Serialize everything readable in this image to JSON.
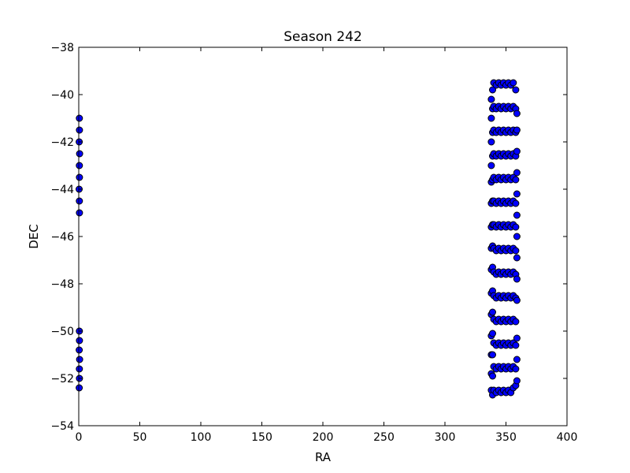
{
  "chart_data": {
    "type": "scatter",
    "title": "Season 242",
    "xlabel": "RA",
    "ylabel": "DEC",
    "xlim": [
      0,
      400
    ],
    "ylim": [
      -54,
      -38
    ],
    "x_ticks": [
      0,
      50,
      100,
      150,
      200,
      250,
      300,
      350,
      400
    ],
    "y_ticks": [
      -54,
      -52,
      -50,
      -48,
      -46,
      -44,
      -42,
      -40,
      -38
    ],
    "x_tick_labels": [
      "0",
      "50",
      "100",
      "150",
      "200",
      "250",
      "300",
      "350",
      "400"
    ],
    "y_tick_labels": [
      "−54",
      "−52",
      "−50",
      "−48",
      "−46",
      "−44",
      "−42",
      "−40",
      "−38"
    ],
    "grid": false,
    "marker_color": "#0000ff",
    "marker_edge_color": "#000000",
    "series": [
      {
        "points": [
          [
            0.5,
            -41.0
          ],
          [
            0.6,
            -41.5
          ],
          [
            0.4,
            -42.0
          ],
          [
            0.7,
            -42.5
          ],
          [
            0.5,
            -43.0
          ],
          [
            0.6,
            -43.5
          ],
          [
            0.3,
            -44.0
          ],
          [
            0.5,
            -44.5
          ],
          [
            0.6,
            -45.0
          ],
          [
            0.5,
            -50.0
          ],
          [
            0.6,
            -50.4
          ],
          [
            0.4,
            -50.8
          ],
          [
            0.7,
            -51.2
          ],
          [
            0.5,
            -51.6
          ],
          [
            0.6,
            -52.0
          ],
          [
            0.4,
            -52.4
          ],
          [
            338,
            -40.2
          ],
          [
            338,
            -41.0
          ],
          [
            338,
            -42.0
          ],
          [
            338,
            -43.0
          ],
          [
            338,
            -43.7
          ],
          [
            338,
            -44.6
          ],
          [
            338,
            -45.6
          ],
          [
            338,
            -46.5
          ],
          [
            338,
            -47.4
          ],
          [
            338,
            -48.4
          ],
          [
            338,
            -49.3
          ],
          [
            338,
            -50.2
          ],
          [
            338,
            -51.0
          ],
          [
            338,
            -51.8
          ],
          [
            338,
            -52.5
          ],
          [
            339,
            -39.8
          ],
          [
            339,
            -40.6
          ],
          [
            339,
            -41.6
          ],
          [
            339,
            -42.6
          ],
          [
            339,
            -43.6
          ],
          [
            339,
            -44.5
          ],
          [
            339,
            -45.5
          ],
          [
            339,
            -46.4
          ],
          [
            339,
            -47.3
          ],
          [
            339,
            -48.3
          ],
          [
            339,
            -49.2
          ],
          [
            339,
            -50.1
          ],
          [
            339,
            -51.0
          ],
          [
            339,
            -51.9
          ],
          [
            339,
            -52.7
          ],
          [
            340,
            -39.5
          ],
          [
            340,
            -40.5
          ],
          [
            340,
            -41.5
          ],
          [
            340,
            -42.5
          ],
          [
            340,
            -43.5
          ],
          [
            340,
            -44.5
          ],
          [
            340,
            -45.5
          ],
          [
            340,
            -46.5
          ],
          [
            340,
            -47.5
          ],
          [
            340,
            -48.5
          ],
          [
            340,
            -49.5
          ],
          [
            340,
            -50.5
          ],
          [
            340,
            -51.5
          ],
          [
            340,
            -52.5
          ],
          [
            342,
            -39.6
          ],
          [
            342,
            -40.6
          ],
          [
            342,
            -41.6
          ],
          [
            342,
            -42.6
          ],
          [
            342,
            -43.6
          ],
          [
            342,
            -44.6
          ],
          [
            342,
            -45.6
          ],
          [
            342,
            -46.6
          ],
          [
            342,
            -47.6
          ],
          [
            342,
            -48.6
          ],
          [
            342,
            -49.6
          ],
          [
            342,
            -50.6
          ],
          [
            342,
            -51.6
          ],
          [
            342,
            -52.6
          ],
          [
            344,
            -39.5
          ],
          [
            344,
            -40.5
          ],
          [
            344,
            -41.5
          ],
          [
            344,
            -42.5
          ],
          [
            344,
            -43.5
          ],
          [
            344,
            -44.5
          ],
          [
            344,
            -45.5
          ],
          [
            344,
            -46.5
          ],
          [
            344,
            -47.5
          ],
          [
            344,
            -48.5
          ],
          [
            344,
            -49.5
          ],
          [
            344,
            -50.5
          ],
          [
            344,
            -51.5
          ],
          [
            344,
            -52.5
          ],
          [
            346,
            -39.6
          ],
          [
            346,
            -40.6
          ],
          [
            346,
            -41.6
          ],
          [
            346,
            -42.6
          ],
          [
            346,
            -43.6
          ],
          [
            346,
            -44.6
          ],
          [
            346,
            -45.6
          ],
          [
            346,
            -46.6
          ],
          [
            346,
            -47.6
          ],
          [
            346,
            -48.6
          ],
          [
            346,
            -49.6
          ],
          [
            346,
            -50.6
          ],
          [
            346,
            -51.6
          ],
          [
            346,
            -52.6
          ],
          [
            348,
            -39.5
          ],
          [
            348,
            -40.5
          ],
          [
            348,
            -41.5
          ],
          [
            348,
            -42.5
          ],
          [
            348,
            -43.5
          ],
          [
            348,
            -44.5
          ],
          [
            348,
            -45.5
          ],
          [
            348,
            -46.5
          ],
          [
            348,
            -47.5
          ],
          [
            348,
            -48.5
          ],
          [
            348,
            -49.5
          ],
          [
            348,
            -50.5
          ],
          [
            348,
            -51.5
          ],
          [
            348,
            -52.5
          ],
          [
            350,
            -39.6
          ],
          [
            350,
            -40.6
          ],
          [
            350,
            -41.6
          ],
          [
            350,
            -42.6
          ],
          [
            350,
            -43.6
          ],
          [
            350,
            -44.6
          ],
          [
            350,
            -45.6
          ],
          [
            350,
            -46.6
          ],
          [
            350,
            -47.6
          ],
          [
            350,
            -48.6
          ],
          [
            350,
            -49.6
          ],
          [
            350,
            -50.6
          ],
          [
            350,
            -51.6
          ],
          [
            350,
            -52.6
          ],
          [
            352,
            -39.5
          ],
          [
            352,
            -40.5
          ],
          [
            352,
            -41.5
          ],
          [
            352,
            -42.5
          ],
          [
            352,
            -43.5
          ],
          [
            352,
            -44.5
          ],
          [
            352,
            -45.5
          ],
          [
            352,
            -46.5
          ],
          [
            352,
            -47.5
          ],
          [
            352,
            -48.5
          ],
          [
            352,
            -49.5
          ],
          [
            352,
            -50.5
          ],
          [
            352,
            -51.5
          ],
          [
            352,
            -52.5
          ],
          [
            354,
            -39.6
          ],
          [
            354,
            -40.6
          ],
          [
            354,
            -41.6
          ],
          [
            354,
            -42.6
          ],
          [
            354,
            -43.6
          ],
          [
            354,
            -44.6
          ],
          [
            354,
            -45.6
          ],
          [
            354,
            -46.6
          ],
          [
            354,
            -47.6
          ],
          [
            354,
            -48.6
          ],
          [
            354,
            -49.6
          ],
          [
            354,
            -50.6
          ],
          [
            354,
            -51.6
          ],
          [
            354,
            -52.6
          ],
          [
            356,
            -39.5
          ],
          [
            356,
            -40.5
          ],
          [
            356,
            -41.5
          ],
          [
            356,
            -42.5
          ],
          [
            356,
            -43.5
          ],
          [
            356,
            -44.5
          ],
          [
            356,
            -45.5
          ],
          [
            356,
            -46.5
          ],
          [
            356,
            -47.5
          ],
          [
            356,
            -48.5
          ],
          [
            356,
            -49.5
          ],
          [
            356,
            -50.5
          ],
          [
            356,
            -51.5
          ],
          [
            356,
            -52.4
          ],
          [
            358,
            -39.8
          ],
          [
            358,
            -40.6
          ],
          [
            358,
            -41.6
          ],
          [
            358,
            -42.6
          ],
          [
            358,
            -43.6
          ],
          [
            358,
            -44.6
          ],
          [
            358,
            -45.6
          ],
          [
            358,
            -46.6
          ],
          [
            358,
            -47.6
          ],
          [
            358,
            -48.6
          ],
          [
            358,
            -49.6
          ],
          [
            358,
            -50.6
          ],
          [
            358,
            -51.6
          ],
          [
            358,
            -52.3
          ],
          [
            359,
            -40.8
          ],
          [
            359,
            -41.5
          ],
          [
            359,
            -42.4
          ],
          [
            359,
            -43.3
          ],
          [
            359,
            -44.2
          ],
          [
            359,
            -45.1
          ],
          [
            359,
            -46.0
          ],
          [
            359,
            -46.9
          ],
          [
            359,
            -47.8
          ],
          [
            359,
            -48.7
          ],
          [
            359,
            -50.3
          ],
          [
            359,
            -51.2
          ],
          [
            359,
            -52.1
          ]
        ]
      }
    ]
  }
}
